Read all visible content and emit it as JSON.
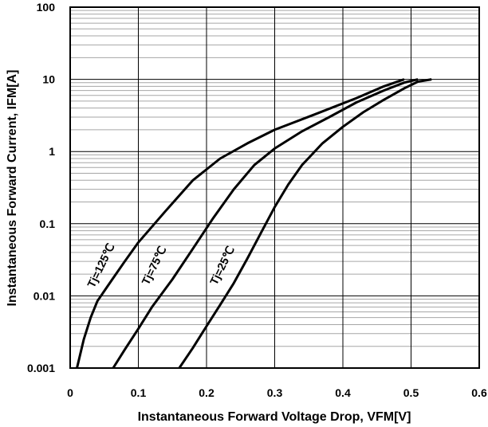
{
  "chart_data": {
    "type": "line",
    "title": "",
    "xlabel": "Instantaneous Forward Voltage Drop, VFM[V]",
    "ylabel": "Instantaneous Forward Current, IFM[A]",
    "xlim": [
      0,
      0.6
    ],
    "ylim": [
      0.001,
      100
    ],
    "yscale": "log",
    "grid": true,
    "x_ticks": [
      "0",
      "0.1",
      "0.2",
      "0.3",
      "0.4",
      "0.5",
      "0.6"
    ],
    "y_ticks": [
      "0.001",
      "0.01",
      "0.1",
      "1",
      "10",
      "100"
    ],
    "series": [
      {
        "name": "Tj=125℃",
        "x": [
          0.01,
          0.02,
          0.03,
          0.04,
          0.06,
          0.08,
          0.1,
          0.14,
          0.18,
          0.22,
          0.26,
          0.3,
          0.36,
          0.42,
          0.46,
          0.49
        ],
        "y": [
          0.001,
          0.0025,
          0.005,
          0.0085,
          0.016,
          0.03,
          0.055,
          0.15,
          0.4,
          0.8,
          1.3,
          2.0,
          3.3,
          5.5,
          8.0,
          10.0
        ]
      },
      {
        "name": "Tj=75℃",
        "x": [
          0.063,
          0.08,
          0.1,
          0.12,
          0.15,
          0.18,
          0.21,
          0.24,
          0.27,
          0.3,
          0.34,
          0.38,
          0.42,
          0.46,
          0.49,
          0.51
        ],
        "y": [
          0.001,
          0.0018,
          0.0035,
          0.007,
          0.017,
          0.045,
          0.12,
          0.3,
          0.65,
          1.1,
          1.9,
          3.0,
          4.8,
          7.0,
          9.0,
          10.0
        ]
      },
      {
        "name": "Tj=25℃",
        "x": [
          0.16,
          0.18,
          0.2,
          0.22,
          0.24,
          0.26,
          0.28,
          0.3,
          0.32,
          0.34,
          0.37,
          0.4,
          0.43,
          0.46,
          0.49,
          0.51,
          0.53
        ],
        "y": [
          0.001,
          0.0019,
          0.0038,
          0.0075,
          0.015,
          0.033,
          0.075,
          0.17,
          0.35,
          0.65,
          1.3,
          2.2,
          3.5,
          5.2,
          7.5,
          9.3,
          10.0
        ]
      }
    ],
    "line_color": "#000000",
    "grid_color": "#a6a6a6"
  }
}
